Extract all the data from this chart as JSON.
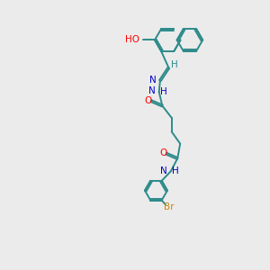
{
  "bg_color": "#ebebeb",
  "bond_color": "#2e8b8b",
  "atom_colors": {
    "O": "#ff0000",
    "N": "#0000cc",
    "Br": "#cc8800",
    "H": "#2e8b8b",
    "C": "#2e8b8b"
  },
  "figsize": [
    3.0,
    3.0
  ],
  "dpi": 100,
  "lw": 1.4,
  "ring_r": 0.48,
  "small_ring_r": 0.42
}
